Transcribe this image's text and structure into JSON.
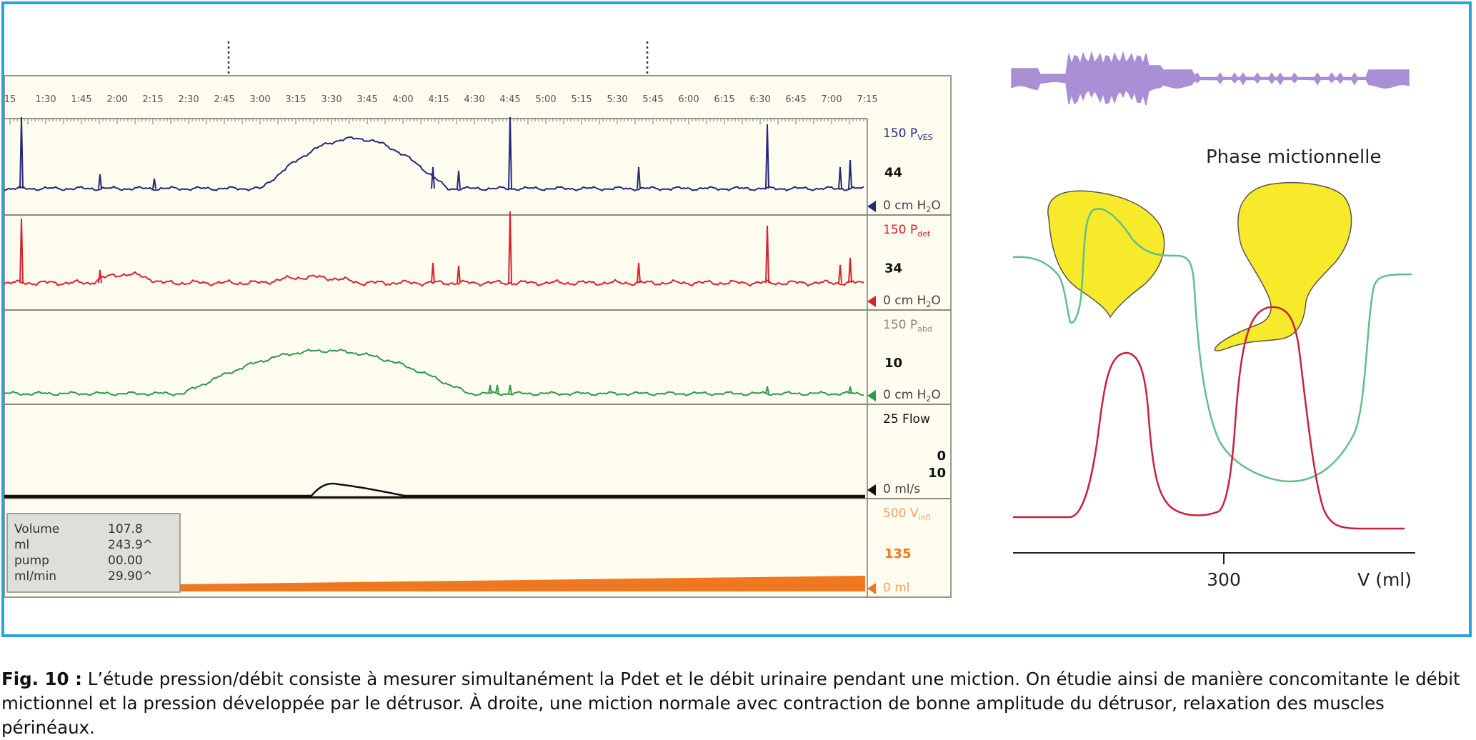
{
  "caption": {
    "label": "Fig. 10 :",
    "text": " L’étude pression/débit consiste à mesurer simultanément la Pdet et le débit urinaire pendant une miction. On étudie ainsi de manière concomitante le débit mictionnel et la pression développée par le détrusor. À droite, une miction normale avec contraction de bonne amplitude du détrusor, relaxation des muscles périnéaux."
  },
  "urodynamic": {
    "time_ticks": [
      "15",
      "1:30",
      "1:45",
      "2:00",
      "2:15",
      "2:30",
      "2:45",
      "3:00",
      "3:15",
      "3:30",
      "3:45",
      "4:00",
      "4:15",
      "4:30",
      "4:45",
      "5:00",
      "5:15",
      "5:30",
      "5:45",
      "6:00",
      "6:15",
      "6:30",
      "6:45",
      "7:00",
      "7:15"
    ],
    "channels": [
      {
        "name": "Pves",
        "top": "150 P",
        "top_sub": "VES",
        "value": "44",
        "bottom": "0 cm H",
        "bottom_sub": "2",
        "bottom_tail": "O",
        "color": "#232a7a"
      },
      {
        "name": "Pdet",
        "top": "150 P",
        "top_sub": "det",
        "value": "34",
        "bottom": "0 cm H",
        "bottom_sub": "2",
        "bottom_tail": "O",
        "color": "#d6242e"
      },
      {
        "name": "Pabd",
        "top": "150 P",
        "top_sub": "abd",
        "value": "10",
        "bottom": "0 cm H",
        "bottom_sub": "2",
        "bottom_tail": "O",
        "color": "#2e9a4a"
      },
      {
        "name": "Flow",
        "top": "25 Flow",
        "top_sub": "",
        "value": "0\n10",
        "bottom": "0 ml/s",
        "bottom_sub": "",
        "bottom_tail": "",
        "color": "#111111"
      },
      {
        "name": "Vinf",
        "top": "500 V",
        "top_sub": "infl",
        "value": "135",
        "bottom": "0 ml",
        "bottom_sub": "",
        "bottom_tail": "",
        "color": "#f07820"
      }
    ],
    "info_box": {
      "rows": [
        {
          "label": "Volume",
          "value": "107.8"
        },
        {
          "label": "ml",
          "value": "243.9^"
        },
        {
          "label": "pump",
          "value": "00.00"
        },
        {
          "label": "ml/min",
          "value": "29.90^"
        }
      ]
    },
    "colors": {
      "pves": "#232a7a",
      "pdet": "#d6242e",
      "pabd": "#2e9a4a",
      "flow": "#111111",
      "infusion": "#f07820",
      "panel_bg": "#fdfcef"
    }
  },
  "schematic": {
    "title": "Phase mictionnelle",
    "x_tick": "300",
    "x_axis_label": "V (ml)",
    "colors": {
      "emg": "#a98fd6",
      "bladder": "#f6ea2a",
      "pressure": "#c8213c",
      "sphincter": "#5fbf8a"
    }
  }
}
